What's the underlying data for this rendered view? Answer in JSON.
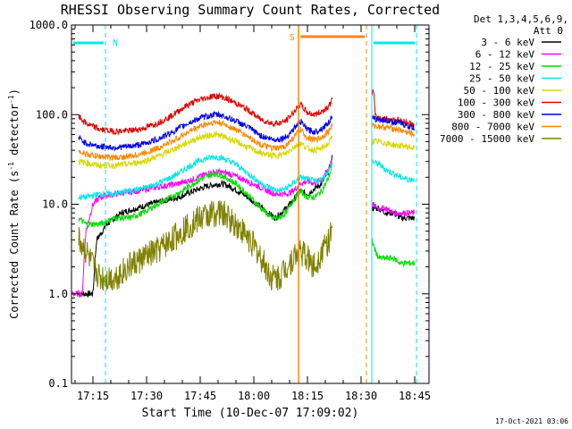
{
  "chart_data": {
    "type": "line",
    "title": "RHESSI Observing Summary Count Rates, Corrected",
    "xlabel": "Start Time (10-Dec-07 17:09:02)",
    "ylabel_main": "Corrected Count Rate (s",
    "ylabel_sup1": "-1",
    "ylabel_mid": " detector",
    "ylabel_sup2": "-1",
    "ylabel_end": ")",
    "y_scale": "log",
    "ylim": [
      0.1,
      1000
    ],
    "xlim_minutes": [
      0,
      100
    ],
    "y_ticks": [
      {
        "v": 0.1,
        "label": "0.1"
      },
      {
        "v": 1,
        "label": "1.0"
      },
      {
        "v": 10,
        "label": "10.0"
      },
      {
        "v": 100,
        "label": "100.0"
      },
      {
        "v": 1000,
        "label": "1000.0"
      }
    ],
    "x_ticks": [
      {
        "m": 6,
        "label": "17:15"
      },
      {
        "m": 21,
        "label": "17:30"
      },
      {
        "m": 36,
        "label": "17:45"
      },
      {
        "m": 51,
        "label": "18:00"
      },
      {
        "m": 66,
        "label": "18:15"
      },
      {
        "m": 81,
        "label": "18:30"
      },
      {
        "m": 96,
        "label": "18:45"
      }
    ],
    "legend": {
      "position": "top-right",
      "header1": "Det 1,3,4,5,6,9,",
      "header2": "Att 0"
    },
    "series": [
      {
        "name": "3 - 6 keV",
        "color": "#000000",
        "points": [
          [
            2,
            1
          ],
          [
            6,
            1
          ],
          [
            7,
            4
          ],
          [
            10,
            6
          ],
          [
            14,
            8
          ],
          [
            18,
            9
          ],
          [
            22,
            10
          ],
          [
            26,
            11
          ],
          [
            30,
            12
          ],
          [
            34,
            14
          ],
          [
            38,
            16
          ],
          [
            42,
            17
          ],
          [
            44,
            16
          ],
          [
            48,
            13
          ],
          [
            52,
            10
          ],
          [
            55,
            8
          ],
          [
            57,
            7
          ],
          [
            60,
            9
          ],
          [
            62,
            11
          ],
          [
            64,
            14
          ],
          [
            66,
            13
          ],
          [
            68,
            15
          ],
          [
            70,
            17
          ],
          [
            72,
            24
          ],
          [
            73,
            34
          ]
        ],
        "after": [
          [
            84,
            9
          ],
          [
            86,
            9
          ],
          [
            88,
            8
          ],
          [
            90,
            8
          ],
          [
            92,
            7
          ],
          [
            94,
            7
          ],
          [
            96,
            7
          ]
        ]
      },
      {
        "name": "6 - 12 keV",
        "color": "#ff00ff",
        "points": [
          [
            0,
            1
          ],
          [
            3,
            1
          ],
          [
            4,
            5
          ],
          [
            6,
            10
          ],
          [
            8,
            12
          ],
          [
            12,
            13
          ],
          [
            18,
            14
          ],
          [
            22,
            15
          ],
          [
            26,
            16
          ],
          [
            30,
            17
          ],
          [
            34,
            19
          ],
          [
            38,
            22
          ],
          [
            41,
            23
          ],
          [
            44,
            22
          ],
          [
            48,
            19
          ],
          [
            52,
            16
          ],
          [
            55,
            14
          ],
          [
            57,
            13
          ],
          [
            60,
            13
          ],
          [
            62,
            14
          ],
          [
            64,
            17
          ],
          [
            66,
            18
          ],
          [
            68,
            17
          ],
          [
            70,
            19
          ],
          [
            72,
            25
          ],
          [
            73,
            34
          ]
        ],
        "after": [
          [
            84,
            10
          ],
          [
            86,
            9
          ],
          [
            88,
            9
          ],
          [
            90,
            8
          ],
          [
            92,
            8
          ],
          [
            94,
            8
          ],
          [
            96,
            8
          ]
        ]
      },
      {
        "name": "12 - 25 keV",
        "color": "#00e000",
        "points": [
          [
            2,
            7
          ],
          [
            4,
            6
          ],
          [
            8,
            6
          ],
          [
            12,
            7
          ],
          [
            16,
            7
          ],
          [
            20,
            8
          ],
          [
            24,
            10
          ],
          [
            28,
            12
          ],
          [
            32,
            15
          ],
          [
            36,
            19
          ],
          [
            40,
            22
          ],
          [
            42,
            21
          ],
          [
            46,
            17
          ],
          [
            50,
            12
          ],
          [
            53,
            9
          ],
          [
            56,
            7
          ],
          [
            58,
            7
          ],
          [
            60,
            8
          ],
          [
            62,
            11
          ],
          [
            64,
            14
          ],
          [
            66,
            12
          ],
          [
            68,
            12
          ],
          [
            70,
            14
          ],
          [
            72,
            20
          ],
          [
            73,
            28
          ]
        ],
        "after": [
          [
            84,
            4
          ],
          [
            85,
            3
          ],
          [
            86,
            2.5
          ],
          [
            88,
            2.5
          ],
          [
            90,
            2.5
          ],
          [
            92,
            2.2
          ],
          [
            94,
            2.2
          ],
          [
            96,
            2.2
          ]
        ]
      },
      {
        "name": "25 - 50 keV",
        "color": "#00e8e8",
        "points": [
          [
            2,
            12
          ],
          [
            4,
            12
          ],
          [
            8,
            13
          ],
          [
            12,
            13
          ],
          [
            16,
            14
          ],
          [
            20,
            15
          ],
          [
            24,
            17
          ],
          [
            28,
            20
          ],
          [
            32,
            25
          ],
          [
            36,
            31
          ],
          [
            40,
            34
          ],
          [
            42,
            33
          ],
          [
            46,
            28
          ],
          [
            50,
            21
          ],
          [
            53,
            17
          ],
          [
            56,
            15
          ],
          [
            58,
            14
          ],
          [
            60,
            15
          ],
          [
            62,
            17
          ],
          [
            64,
            20
          ],
          [
            66,
            19
          ],
          [
            68,
            18
          ],
          [
            70,
            19
          ],
          [
            72,
            24
          ],
          [
            73,
            30
          ]
        ],
        "after": [
          [
            84,
            30
          ],
          [
            86,
            28
          ],
          [
            88,
            24
          ],
          [
            90,
            22
          ],
          [
            92,
            20
          ],
          [
            94,
            19
          ],
          [
            96,
            19
          ]
        ]
      },
      {
        "name": "50 - 100 keV",
        "color": "#d8d800",
        "points": [
          [
            2,
            30
          ],
          [
            4,
            29
          ],
          [
            8,
            27
          ],
          [
            12,
            27
          ],
          [
            16,
            28
          ],
          [
            20,
            30
          ],
          [
            24,
            34
          ],
          [
            28,
            40
          ],
          [
            32,
            48
          ],
          [
            36,
            56
          ],
          [
            40,
            60
          ],
          [
            42,
            58
          ],
          [
            46,
            50
          ],
          [
            50,
            42
          ],
          [
            53,
            37
          ],
          [
            56,
            35
          ],
          [
            58,
            35
          ],
          [
            60,
            37
          ],
          [
            62,
            43
          ],
          [
            64,
            48
          ],
          [
            66,
            42
          ],
          [
            68,
            40
          ],
          [
            70,
            42
          ],
          [
            72,
            48
          ],
          [
            73,
            58
          ]
        ],
        "after": [
          [
            84,
            50
          ],
          [
            86,
            50
          ],
          [
            88,
            48
          ],
          [
            90,
            46
          ],
          [
            92,
            45
          ],
          [
            94,
            44
          ],
          [
            96,
            42
          ]
        ]
      },
      {
        "name": "100 - 300 keV",
        "color": "#e00000",
        "points": [
          [
            2,
            95
          ],
          [
            4,
            80
          ],
          [
            8,
            68
          ],
          [
            12,
            65
          ],
          [
            16,
            66
          ],
          [
            20,
            70
          ],
          [
            24,
            80
          ],
          [
            28,
            97
          ],
          [
            32,
            125
          ],
          [
            36,
            148
          ],
          [
            40,
            162
          ],
          [
            42,
            158
          ],
          [
            46,
            135
          ],
          [
            50,
            108
          ],
          [
            53,
            88
          ],
          [
            56,
            80
          ],
          [
            58,
            80
          ],
          [
            60,
            85
          ],
          [
            62,
            105
          ],
          [
            64,
            130
          ],
          [
            66,
            105
          ],
          [
            68,
            100
          ],
          [
            70,
            108
          ],
          [
            72,
            125
          ],
          [
            73,
            150
          ]
        ],
        "after": [
          [
            84,
            180
          ],
          [
            84.5,
            180
          ],
          [
            85,
            95
          ],
          [
            86,
            92
          ],
          [
            88,
            90
          ],
          [
            90,
            88
          ],
          [
            92,
            86
          ],
          [
            94,
            82
          ],
          [
            96,
            76
          ]
        ]
      },
      {
        "name": "300 - 800 keV",
        "color": "#0000e8",
        "points": [
          [
            2,
            55
          ],
          [
            4,
            48
          ],
          [
            8,
            44
          ],
          [
            12,
            43
          ],
          [
            16,
            44
          ],
          [
            20,
            47
          ],
          [
            24,
            53
          ],
          [
            28,
            63
          ],
          [
            32,
            78
          ],
          [
            36,
            92
          ],
          [
            40,
            100
          ],
          [
            42,
            98
          ],
          [
            46,
            85
          ],
          [
            50,
            70
          ],
          [
            53,
            58
          ],
          [
            56,
            53
          ],
          [
            58,
            53
          ],
          [
            60,
            56
          ],
          [
            62,
            68
          ],
          [
            64,
            84
          ],
          [
            66,
            68
          ],
          [
            68,
            64
          ],
          [
            70,
            70
          ],
          [
            72,
            82
          ],
          [
            73,
            100
          ]
        ],
        "after": [
          [
            84,
            90
          ],
          [
            86,
            88
          ],
          [
            88,
            86
          ],
          [
            90,
            83
          ],
          [
            92,
            80
          ],
          [
            94,
            75
          ],
          [
            96,
            70
          ]
        ]
      },
      {
        "name": "800 - 7000 keV",
        "color": "#ff8800",
        "points": [
          [
            2,
            40
          ],
          [
            4,
            36
          ],
          [
            8,
            34
          ],
          [
            12,
            33
          ],
          [
            16,
            34
          ],
          [
            20,
            37
          ],
          [
            24,
            42
          ],
          [
            28,
            50
          ],
          [
            32,
            62
          ],
          [
            36,
            75
          ],
          [
            40,
            82
          ],
          [
            42,
            80
          ],
          [
            46,
            68
          ],
          [
            50,
            55
          ],
          [
            53,
            46
          ],
          [
            56,
            42
          ],
          [
            58,
            42
          ],
          [
            60,
            45
          ],
          [
            62,
            55
          ],
          [
            64,
            68
          ],
          [
            66,
            55
          ],
          [
            68,
            52
          ],
          [
            70,
            56
          ],
          [
            72,
            66
          ],
          [
            73,
            78
          ]
        ],
        "after": [
          [
            84,
            75
          ],
          [
            86,
            74
          ],
          [
            88,
            72
          ],
          [
            90,
            70
          ],
          [
            92,
            67
          ],
          [
            94,
            63
          ],
          [
            96,
            60
          ]
        ]
      },
      {
        "name": "7000 - 15000 keV",
        "color": "#808000",
        "points": [
          [
            2,
            4
          ],
          [
            4,
            3
          ],
          [
            6,
            2
          ],
          [
            8,
            1.5
          ],
          [
            12,
            1.5
          ],
          [
            16,
            2
          ],
          [
            20,
            2.5
          ],
          [
            24,
            3
          ],
          [
            28,
            4
          ],
          [
            32,
            5.5
          ],
          [
            36,
            7
          ],
          [
            40,
            8
          ],
          [
            42,
            8
          ],
          [
            46,
            6
          ],
          [
            50,
            4
          ],
          [
            53,
            2.5
          ],
          [
            56,
            1.5
          ],
          [
            58,
            1.5
          ],
          [
            60,
            2
          ],
          [
            62,
            2.5
          ],
          [
            64,
            3
          ],
          [
            66,
            2.5
          ],
          [
            68,
            2
          ],
          [
            70,
            3
          ],
          [
            72,
            4
          ],
          [
            73,
            5
          ]
        ],
        "after": []
      }
    ],
    "gaps": [
      [
        73.5,
        83.5
      ]
    ],
    "annotations": {
      "n_label": "N",
      "s_label": "S",
      "timestamp": "17-Oct-2021 03:06"
    },
    "colors": {
      "night_bar": "#00e8e8",
      "saa_bar": "#ff8800",
      "saa_line": "#ff8800",
      "axis": "#000000"
    }
  }
}
